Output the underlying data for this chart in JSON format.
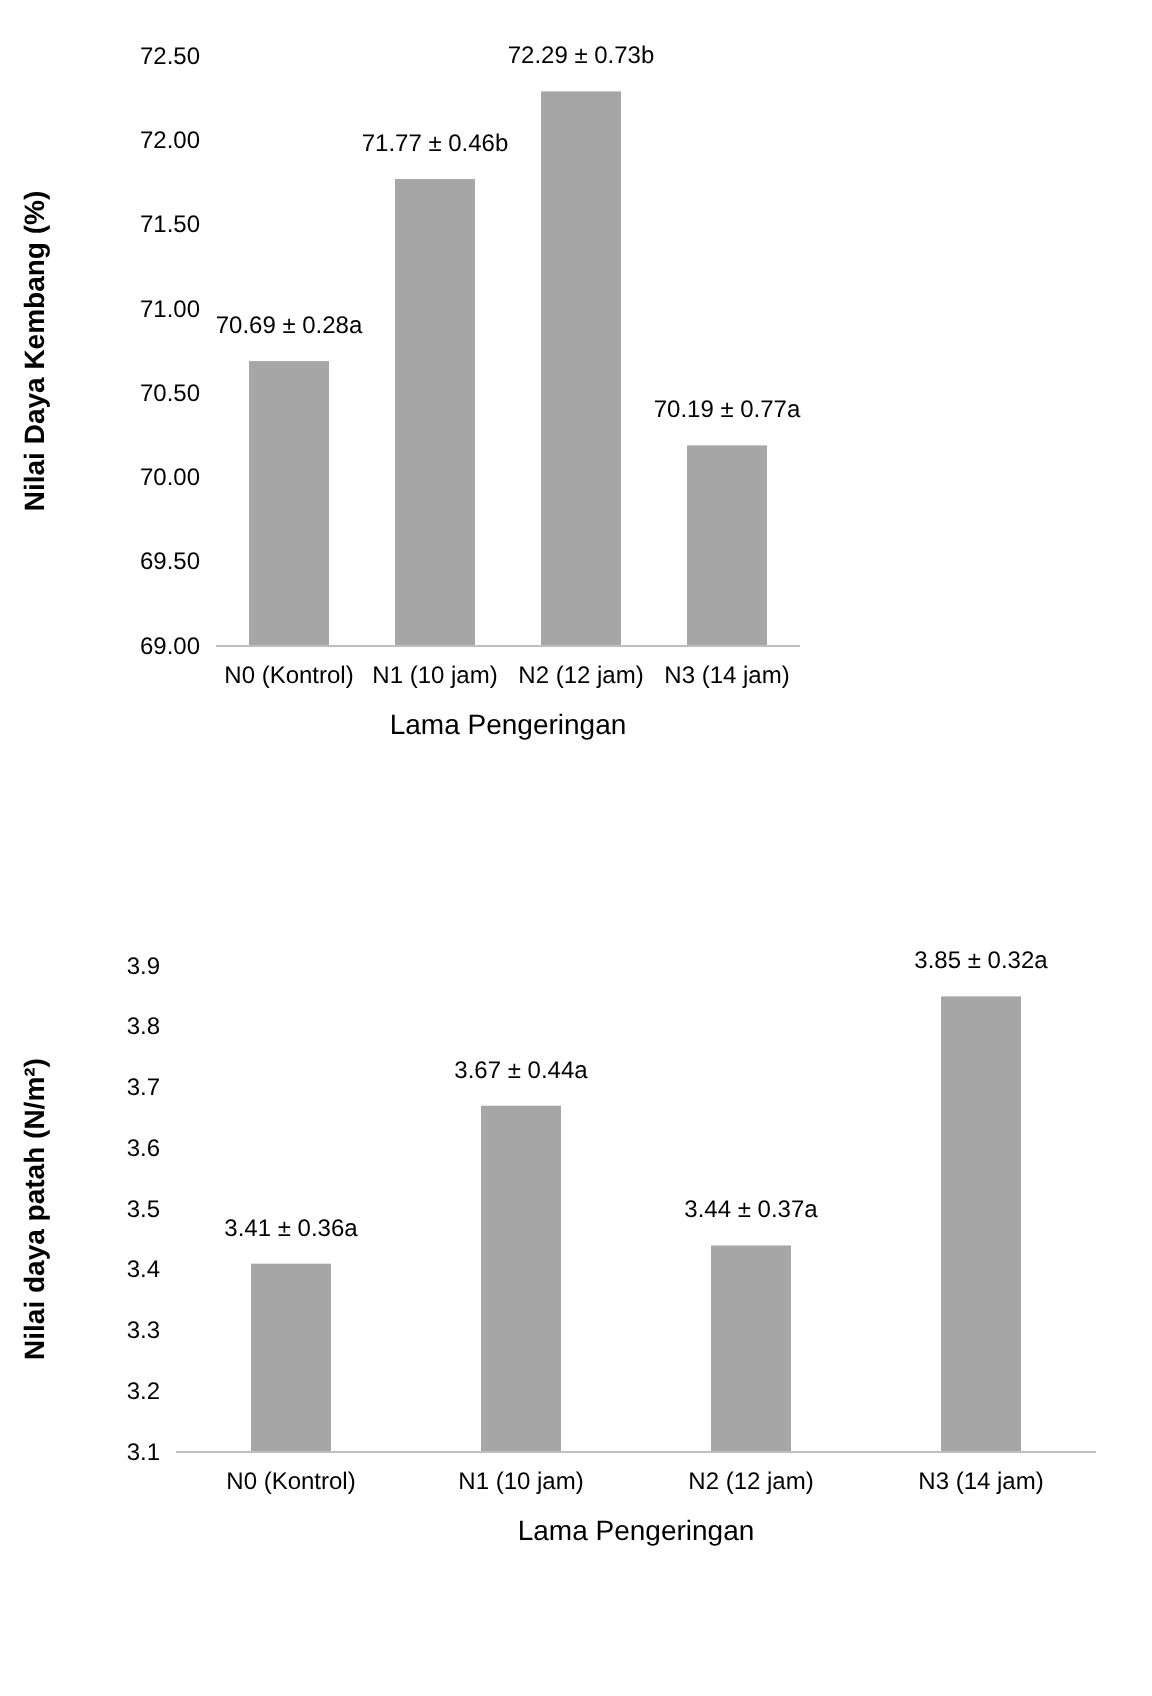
{
  "chart_data": [
    {
      "type": "bar",
      "xlabel": "Lama Pengeringan",
      "ylabel": "Nilai Daya Kembang (%)",
      "categories": [
        "N0 (Kontrol)",
        "N1 (10 jam)",
        "N2 (12 jam)",
        "N3 (14 jam)"
      ],
      "values": [
        70.69,
        71.77,
        72.29,
        70.19
      ],
      "value_labels": [
        "70.69 ± 0.28a",
        "71.77 ± 0.46b",
        "72.29 ± 0.73b",
        "70.19 ± 0.77a"
      ],
      "color": "#a6a6a6",
      "ylim": [
        69,
        72.5
      ],
      "yticks": [
        {
          "value": 69,
          "label": "69.00"
        },
        {
          "value": 69.5,
          "label": "69.50"
        },
        {
          "value": 70,
          "label": "70.00"
        },
        {
          "value": 70.5,
          "label": "70.50"
        },
        {
          "value": 71,
          "label": "71.00"
        },
        {
          "value": 71.5,
          "label": "71.50"
        },
        {
          "value": 72,
          "label": "72.00"
        },
        {
          "value": 72.5,
          "label": "72.50"
        }
      ],
      "grid": false
    },
    {
      "type": "bar",
      "xlabel": "Lama Pengeringan",
      "ylabel": "Nilai daya patah (N/m²)",
      "categories": [
        "N0 (Kontrol)",
        "N1 (10 jam)",
        "N2 (12 jam)",
        "N3 (14 jam)"
      ],
      "values": [
        3.41,
        3.67,
        3.44,
        3.85
      ],
      "value_labels": [
        "3.41 ± 0.36a",
        "3.67 ± 0.44a",
        "3.44 ± 0.37a",
        "3.85 ± 0.32a"
      ],
      "color": "#a6a6a6",
      "ylim": [
        3.1,
        3.9
      ],
      "yticks": [
        3.1,
        3.2,
        3.3,
        3.4,
        3.5,
        3.6,
        3.7,
        3.8,
        3.9
      ],
      "grid": false
    }
  ]
}
